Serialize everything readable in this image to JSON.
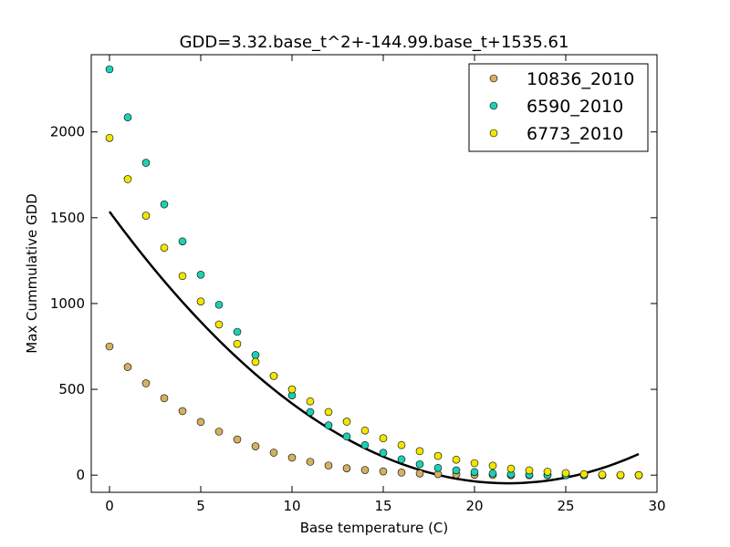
{
  "chart_data": {
    "type": "scatter",
    "title": "GDD=3.32.base_t^2+-144.99.base_t+1535.61",
    "xlabel": "Base temperature (C)",
    "ylabel": "Max Cummulative GDD",
    "xlim": [
      -1,
      30
    ],
    "ylim": [
      -100,
      2450
    ],
    "xticks": [
      0,
      5,
      10,
      15,
      20,
      25,
      30
    ],
    "yticks": [
      0,
      500,
      1000,
      1500,
      2000
    ],
    "x": [
      0,
      1,
      2,
      3,
      4,
      5,
      6,
      7,
      8,
      9,
      10,
      11,
      12,
      13,
      14,
      15,
      16,
      17,
      18,
      19,
      20,
      21,
      22,
      23,
      24,
      25,
      26,
      27,
      28,
      29
    ],
    "series": [
      {
        "name": "10836_2010",
        "color": "#d4b061",
        "values": [
          750,
          630,
          535,
          448,
          373,
          310,
          254,
          208,
          168,
          131,
          102,
          78,
          56,
          40,
          30,
          22,
          15,
          10,
          6,
          4,
          2,
          1,
          0,
          0,
          0,
          0,
          0,
          0,
          0,
          0
        ]
      },
      {
        "name": "6590_2010",
        "color": "#1fcfb4",
        "values": [
          2365,
          2085,
          1820,
          1578,
          1362,
          1168,
          993,
          835,
          700,
          578,
          465,
          368,
          290,
          225,
          175,
          130,
          92,
          64,
          42,
          28,
          18,
          10,
          5,
          2,
          1,
          0,
          0,
          0,
          0,
          0
        ]
      },
      {
        "name": "6773_2010",
        "color": "#f2e600",
        "values": [
          1965,
          1725,
          1512,
          1325,
          1160,
          1012,
          878,
          765,
          660,
          578,
          500,
          430,
          368,
          312,
          260,
          215,
          175,
          140,
          112,
          90,
          70,
          55,
          38,
          28,
          20,
          12,
          6,
          3,
          1,
          0
        ]
      }
    ],
    "fit": {
      "type": "quadratic",
      "coefficients": [
        3.32,
        -144.99,
        1535.61
      ],
      "x_range": [
        0,
        29
      ],
      "color": "#000000"
    },
    "legend_position": "top-right",
    "grid": false
  }
}
